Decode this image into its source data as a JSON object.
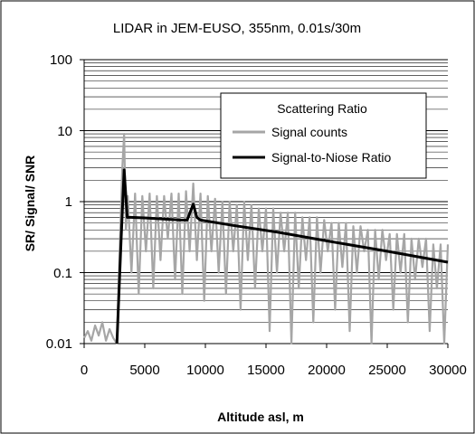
{
  "chart_data": {
    "type": "line",
    "title": "LIDAR in JEM-EUSO, 355nm, 0.01s/30m",
    "xlabel": "Altitude asl, m",
    "ylabel": "SR/ Signal/ SNR",
    "x_ticks": [
      "0",
      "5000",
      "10000",
      "15000",
      "20000",
      "25000",
      "30000"
    ],
    "y_ticks": [
      "0.01",
      "0.1",
      "1",
      "10",
      "100"
    ],
    "xlim": [
      0,
      30000
    ],
    "ylim": [
      0.01,
      100
    ],
    "yscale": "log",
    "grid": "horizontal major and minor lines",
    "legend_position": "upper-right",
    "series": [
      {
        "name": "Scattering Ratio",
        "color": "#ffffff",
        "x": [],
        "y": []
      },
      {
        "name": "Signal counts",
        "color": "#a6a6a6",
        "note": "noisy signal, approximated",
        "x": [
          0,
          300,
          600,
          900,
          1200,
          1500,
          1800,
          2100,
          2400,
          2700,
          3000,
          3150,
          3300,
          3450,
          3600,
          3900,
          4200,
          4500,
          4800,
          5100,
          5400,
          5700,
          6000,
          6300,
          6600,
          6900,
          7200,
          7500,
          7800,
          8100,
          8400,
          8700,
          9000,
          9300,
          9600,
          9900,
          10200,
          10500,
          10800,
          11100,
          11400,
          11700,
          12000,
          12300,
          12600,
          12900,
          13200,
          13500,
          13800,
          14100,
          14400,
          14700,
          15000,
          15300,
          15600,
          15900,
          16200,
          16500,
          16800,
          17100,
          17400,
          17700,
          18000,
          18300,
          18600,
          18900,
          19200,
          19500,
          19800,
          20100,
          20400,
          20700,
          21000,
          21300,
          21600,
          21900,
          22200,
          22500,
          22800,
          23100,
          23400,
          23700,
          24000,
          24300,
          24600,
          24900,
          25200,
          25500,
          25800,
          26100,
          26400,
          26700,
          27000,
          27300,
          27600,
          27900,
          28200,
          28500,
          28800,
          29100,
          29400,
          29700,
          30000
        ],
        "y": [
          0.012,
          0.015,
          0.011,
          0.018,
          0.013,
          0.02,
          0.011,
          0.016,
          0.012,
          0.01,
          0.5,
          3.0,
          9.0,
          0.4,
          1.2,
          0.1,
          1.3,
          0.05,
          1.2,
          0.2,
          1.3,
          0.06,
          1.2,
          0.15,
          1.2,
          0.3,
          1.3,
          0.08,
          1.3,
          0.05,
          1.4,
          0.2,
          1.8,
          0.15,
          1.3,
          0.04,
          1.2,
          0.2,
          1.1,
          0.1,
          1.0,
          0.05,
          1.0,
          0.2,
          0.9,
          0.03,
          1.0,
          0.15,
          0.9,
          0.06,
          0.8,
          0.2,
          0.8,
          0.015,
          0.8,
          0.1,
          0.7,
          0.2,
          0.7,
          0.01,
          0.7,
          0.06,
          0.6,
          0.15,
          0.6,
          0.02,
          0.6,
          0.1,
          0.55,
          0.2,
          0.5,
          0.03,
          0.5,
          0.12,
          0.5,
          0.015,
          0.45,
          0.1,
          0.45,
          0.2,
          0.4,
          0.01,
          0.4,
          0.08,
          0.4,
          0.15,
          0.35,
          0.03,
          0.35,
          0.1,
          0.35,
          0.02,
          0.3,
          0.08,
          0.3,
          0.12,
          0.3,
          0.015,
          0.25,
          0.06,
          0.25,
          0.01,
          0.25
        ]
      },
      {
        "name": "Signal-to-Niose Ratio",
        "color": "#000000",
        "x": [
          2700,
          3050,
          3300,
          3550,
          3800,
          5000,
          8000,
          8500,
          8800,
          9000,
          9300,
          9600,
          12000,
          16000,
          20000,
          25000,
          30000
        ],
        "y": [
          0.01,
          0.3,
          2.8,
          0.6,
          0.6,
          0.59,
          0.55,
          0.55,
          0.75,
          0.92,
          0.6,
          0.55,
          0.47,
          0.37,
          0.28,
          0.2,
          0.14
        ]
      }
    ]
  }
}
